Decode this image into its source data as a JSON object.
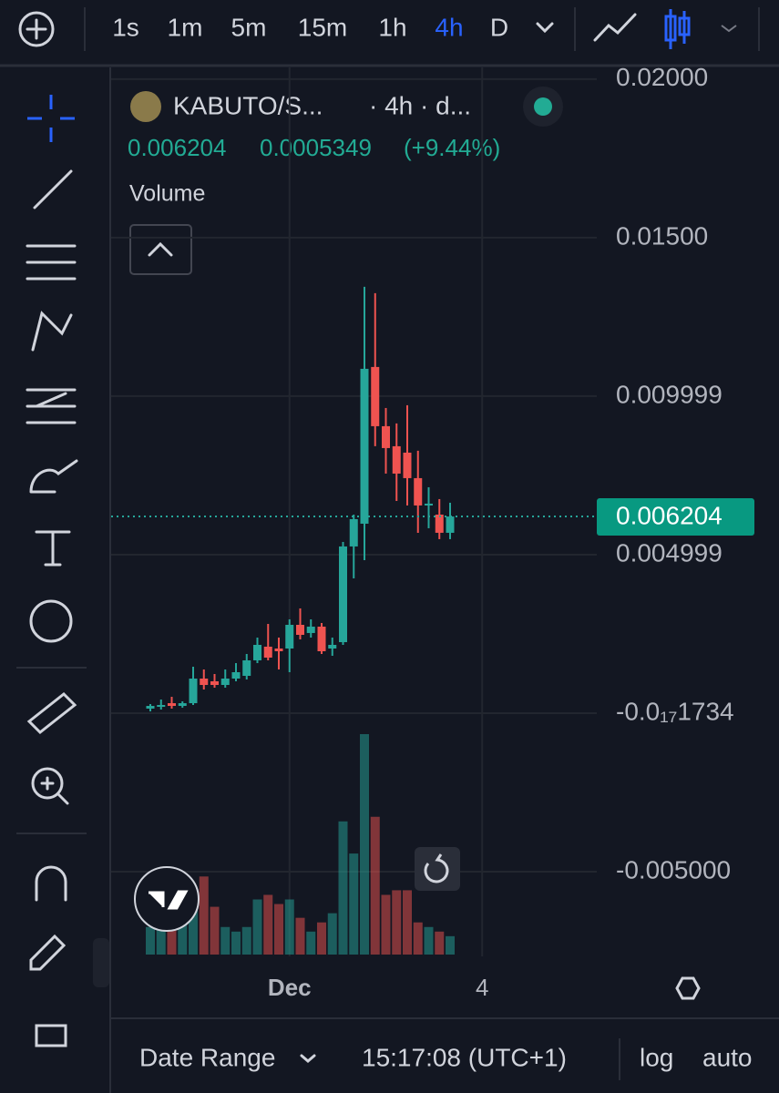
{
  "toolbar": {
    "intervals": [
      "1s",
      "1m",
      "5m",
      "15m",
      "1h",
      "4h",
      "D"
    ],
    "active": "4h"
  },
  "legend": {
    "symbol": "KABUTO/S...",
    "details": "· 4h · d...",
    "change": "0.0005349",
    "change_pct": "(+9.44%)",
    "study": "Volume"
  },
  "chart_data": {
    "type": "candlestick",
    "categories": [
      null,
      null,
      null,
      null,
      null,
      null,
      null,
      null,
      null,
      null,
      null,
      null,
      null,
      "Dec",
      null,
      null,
      null,
      null,
      null,
      null,
      null,
      null,
      null,
      null,
      null,
      null,
      null,
      null,
      null,
      null,
      null,
      "4"
    ],
    "open": [
      0.000144,
      0.000201,
      0.000316,
      0.00023,
      0.000316,
      0.001092,
      0.001006,
      0.000891,
      0.001092,
      0.001178,
      0.001667,
      0.002098,
      0.00204,
      0.00204,
      0.002787,
      0.002529,
      0.00273,
      0.00204,
      0.002241,
      0.005259,
      0.005977,
      0.01092,
      0.009052,
      0.00842,
      0.008218,
      0.007414,
      0.006552,
      0.006264,
      0.00569,
      null,
      null,
      null
    ],
    "close": [
      0.00023,
      0.000259,
      0.00023,
      0.000316,
      0.001092,
      0.000891,
      0.000891,
      0.001092,
      0.001293,
      0.001667,
      0.002155,
      0.001753,
      0.001954,
      0.002787,
      0.002471,
      0.00273,
      0.001954,
      0.002155,
      0.005259,
      0.006121,
      0.010862,
      0.009052,
      0.008362,
      0.007557,
      0.007414,
      0.006552,
      0.006609,
      0.00569,
      0.006204,
      null,
      null,
      null
    ],
    "high": [
      0.000287,
      0.000431,
      0.000517,
      0.000374,
      0.001466,
      0.001379,
      0.001236,
      0.001379,
      0.00158,
      0.001868,
      0.002385,
      0.002816,
      0.002385,
      0.00296,
      0.003305,
      0.00296,
      0.002845,
      0.002385,
      0.005402,
      0.006264,
      0.013448,
      0.013247,
      0.009626,
      0.009138,
      0.009713,
      0.008276,
      0.007126,
      0.006753,
      0.006638,
      null,
      null,
      null
    ],
    "low": [
      5.7e-05,
      0.000115,
      0.000144,
      0.000172,
      0.000259,
      0.000747,
      0.000805,
      0.000805,
      0.001006,
      0.001063,
      0.00158,
      0.001667,
      0.001379,
      0.001293,
      0.002328,
      0.002385,
      0.001868,
      0.00181,
      0.002155,
      0.004253,
      0.004828,
      0.00842,
      0.007557,
      0.006695,
      0.006552,
      0.00569,
      0.005833,
      0.005489,
      0.005489,
      null,
      null,
      null
    ],
    "volume": [
      30,
      30,
      35,
      40,
      55,
      85,
      52,
      30,
      25,
      30,
      60,
      65,
      55,
      60,
      40,
      25,
      35,
      45,
      145,
      110,
      240,
      150,
      65,
      70,
      70,
      35,
      30,
      25,
      20,
      null,
      null,
      null
    ],
    "up_color": "#26a69a",
    "down_color": "#ef5350",
    "ylim": [
      -0.00767,
      0.02034
    ],
    "yticks": [
      {
        "value": 0.02,
        "label": "0.02000"
      },
      {
        "value": 0.015,
        "label": "0.01500"
      },
      {
        "value": 0.01,
        "label": "0.009999"
      },
      {
        "value": 0.005,
        "label": "0.004999"
      },
      {
        "value": -1.734e-19,
        "label": "-0.0₁₇1734"
      },
      {
        "value": -0.005,
        "label": "-0.005000"
      }
    ],
    "grid": true,
    "last_price_line": true
  },
  "bottom_bar": {
    "date_range": "Date Range",
    "time": "15:17:08 (UTC+1)",
    "log": "log",
    "auto": "auto"
  }
}
